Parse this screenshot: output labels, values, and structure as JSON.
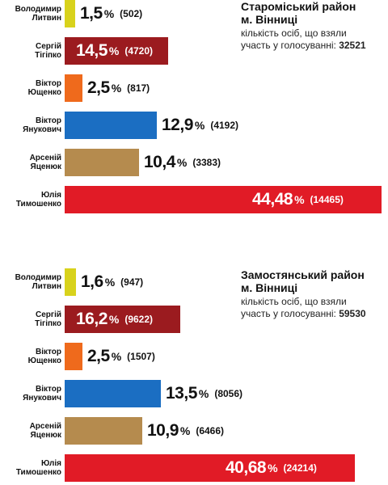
{
  "chart_data": [
    {
      "type": "bar",
      "title": "Староміський район\nм. Вінниці",
      "turnout_label": "кількість осіб, що взяли\nучасть у голосуванні:",
      "turnout_value": "32521",
      "unit": "%",
      "xlim": [
        0,
        44.48
      ],
      "categories": [
        "Володимир\nЛитвин",
        "Сергій\nТігіпко",
        "Віктор\nЮщенко",
        "Віктор\nЯнукович",
        "Арсеній\nЯценюк",
        "Юлія\nТимошенко"
      ],
      "values": [
        1.5,
        14.5,
        2.5,
        12.9,
        10.4,
        44.48
      ],
      "value_labels": [
        "1,5",
        "14,5",
        "2,5",
        "12,9",
        "10,4",
        "44,48"
      ],
      "counts": [
        "(502)",
        "(4720)",
        "(817)",
        "(4192)",
        "(3383)",
        "(14465)"
      ],
      "colors": [
        "#d8d21c",
        "#9b1b1f",
        "#ef6a1c",
        "#1b6ec2",
        "#b58b4e",
        "#e11b26"
      ]
    },
    {
      "type": "bar",
      "title": "Замостянський район\nм. Вінниці",
      "turnout_label": "кількість осіб, що взяли\nучасть у голосуванні:",
      "turnout_value": "59530",
      "unit": "%",
      "xlim": [
        0,
        44.48
      ],
      "categories": [
        "Володимир\nЛитвин",
        "Сергій\nТігіпко",
        "Віктор\nЮщенко",
        "Віктор\nЯнукович",
        "Арсеній\nЯценюк",
        "Юлія\nТимошенко"
      ],
      "values": [
        1.6,
        16.2,
        2.5,
        13.5,
        10.9,
        40.68
      ],
      "value_labels": [
        "1,6",
        "16,2",
        "2,5",
        "13,5",
        "10,9",
        "40,68"
      ],
      "counts": [
        "(947)",
        "(9622)",
        "(1507)",
        "(8056)",
        "(6466)",
        "(24214)"
      ],
      "colors": [
        "#d8d21c",
        "#9b1b1f",
        "#ef6a1c",
        "#1b6ec2",
        "#b58b4e",
        "#e11b26"
      ]
    }
  ]
}
